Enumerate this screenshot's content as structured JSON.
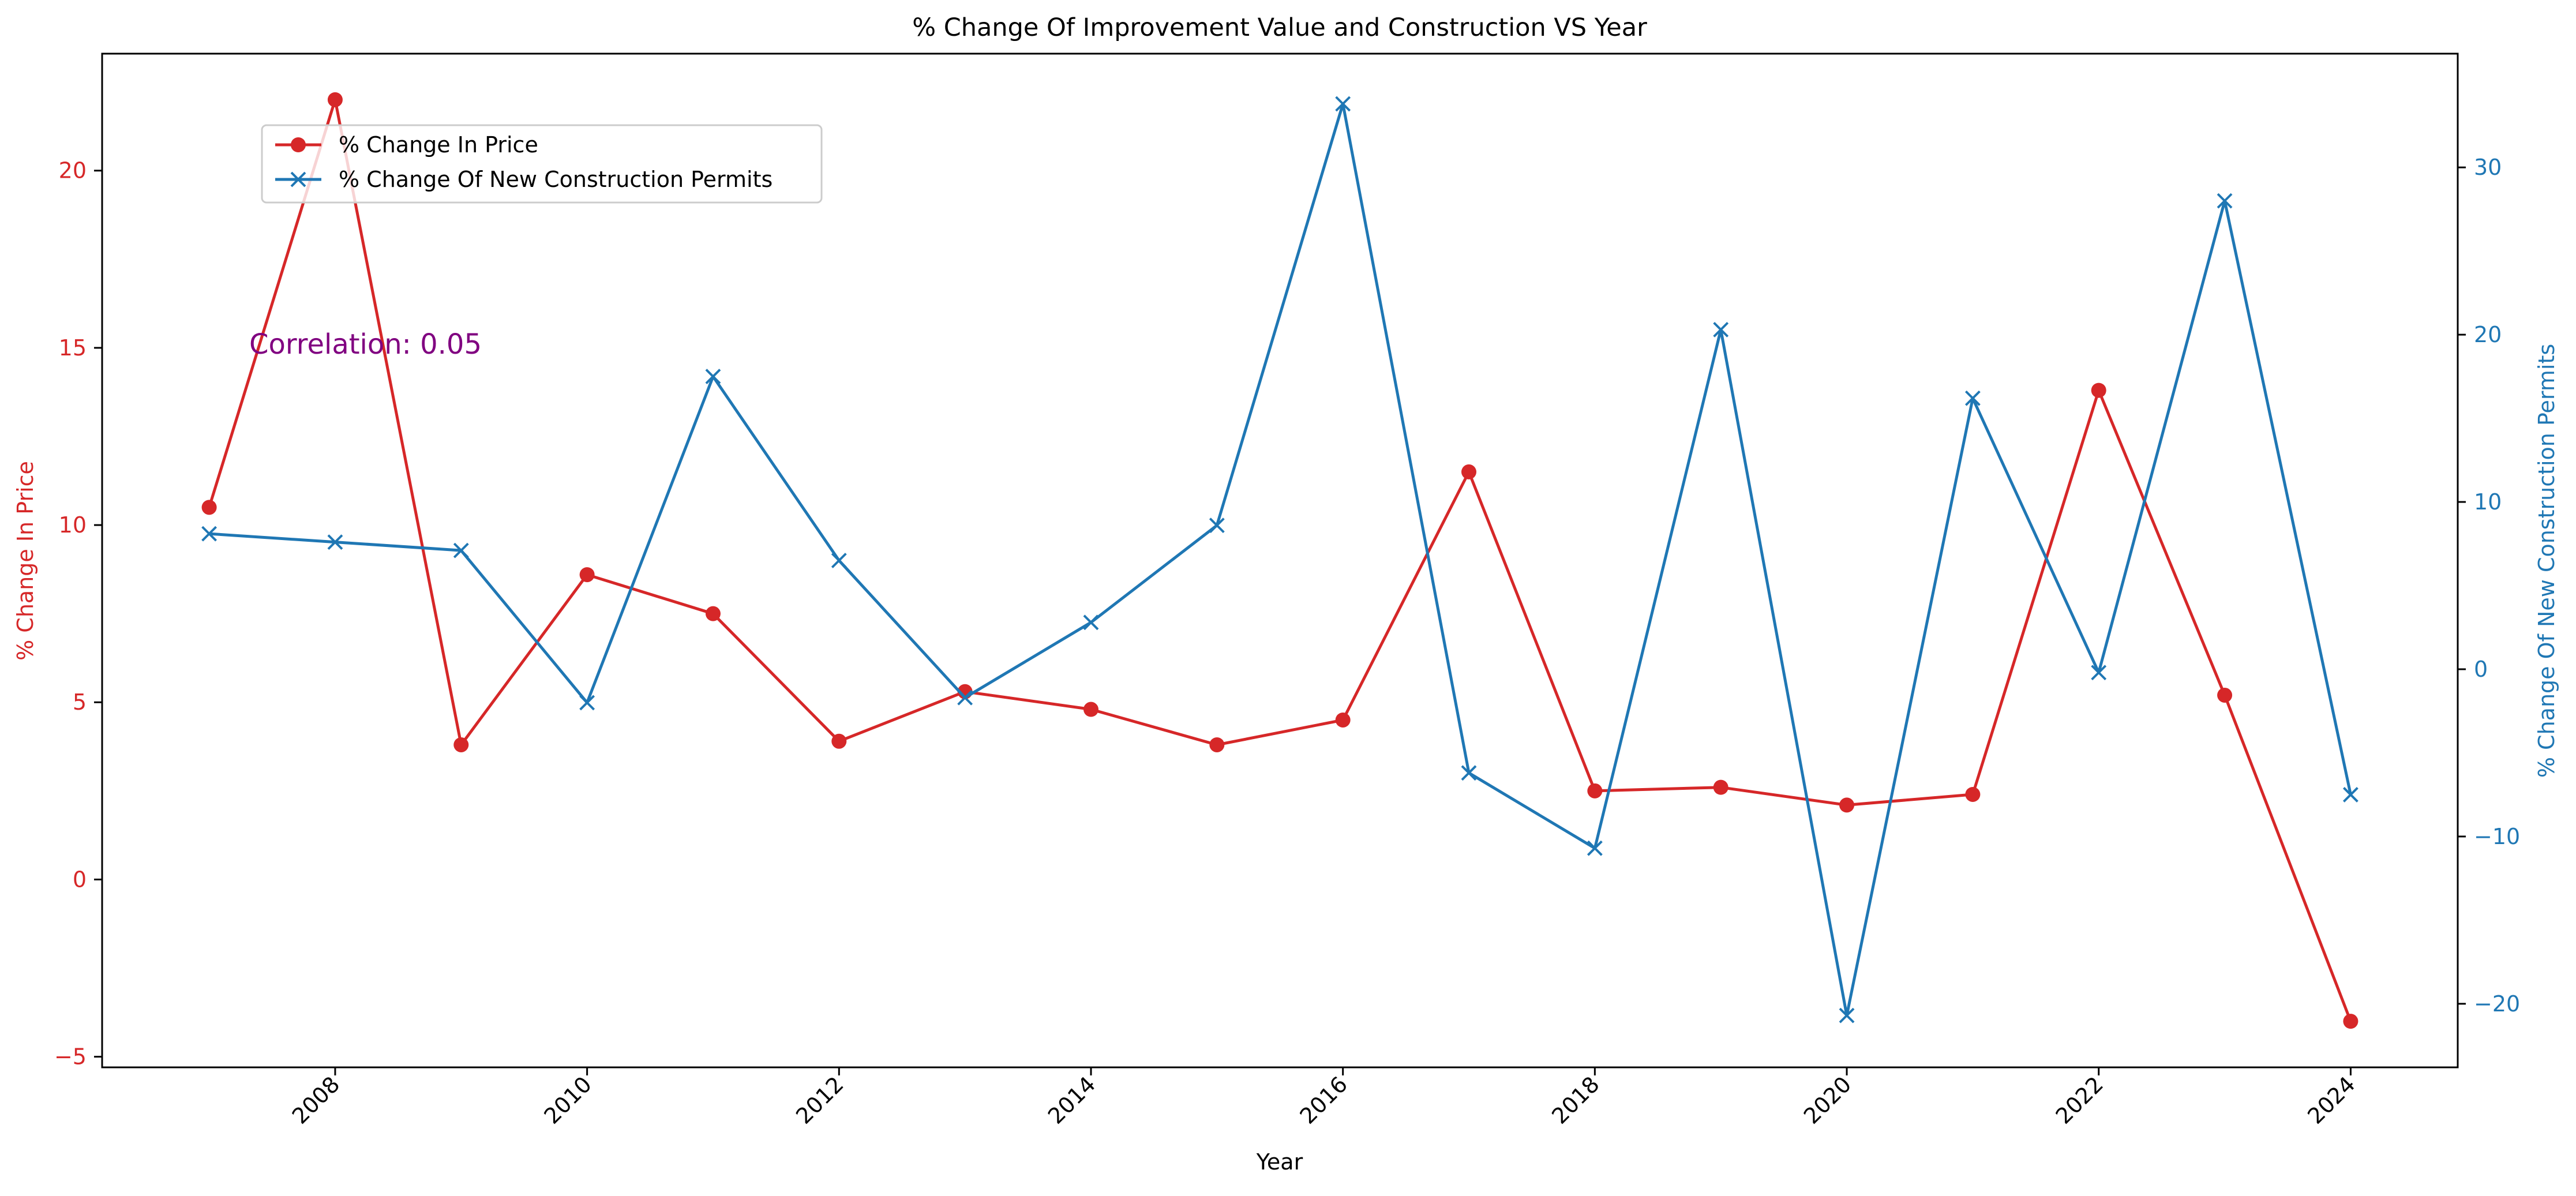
{
  "chart_data": {
    "type": "line",
    "title": "% Change Of Improvement Value and Construction VS Year",
    "xlabel": "Year",
    "ylabel_left": "% Change In Price",
    "ylabel_right": "% Change Of New Construction Permits",
    "annotation": "Correlation: 0.05",
    "x": [
      2007,
      2008,
      2009,
      2010,
      2011,
      2012,
      2013,
      2014,
      2015,
      2016,
      2017,
      2018,
      2019,
      2020,
      2021,
      2022,
      2023,
      2024
    ],
    "x_ticks": [
      "2008",
      "2010",
      "2012",
      "2014",
      "2016",
      "2018",
      "2020",
      "2022",
      "2024"
    ],
    "xlim": [
      2006.15,
      2024.85
    ],
    "left_axis": {
      "ylim": [
        -5.3,
        23.3
      ],
      "ticks": [
        -5,
        0,
        5,
        10,
        15,
        20
      ],
      "tick_labels": [
        "−5",
        "0",
        "5",
        "10",
        "15",
        "20"
      ]
    },
    "right_axis": {
      "ylim": [
        -23.8,
        36.8
      ],
      "ticks": [
        -20,
        -10,
        0,
        10,
        20,
        30
      ],
      "tick_labels": [
        "−20",
        "−10",
        "0",
        "10",
        "20",
        "30"
      ]
    },
    "series": [
      {
        "name": "% Change In Price",
        "axis": "left",
        "marker": "circle",
        "color": "#d62728",
        "values": [
          10.5,
          22.0,
          3.8,
          8.6,
          7.5,
          3.9,
          5.3,
          4.8,
          3.8,
          4.5,
          11.5,
          2.5,
          2.6,
          2.1,
          2.4,
          13.8,
          5.2,
          -4.0
        ]
      },
      {
        "name": "% Change Of New Construction Permits",
        "axis": "right",
        "marker": "x",
        "color": "#1f77b4",
        "values": [
          8.1,
          7.6,
          7.1,
          -2.0,
          17.5,
          6.5,
          -1.7,
          2.8,
          8.6,
          33.8,
          -6.2,
          -10.7,
          20.3,
          -20.7,
          16.2,
          -0.2,
          28.0,
          -7.5
        ]
      }
    ],
    "legend": "upper-left",
    "grid": false
  }
}
